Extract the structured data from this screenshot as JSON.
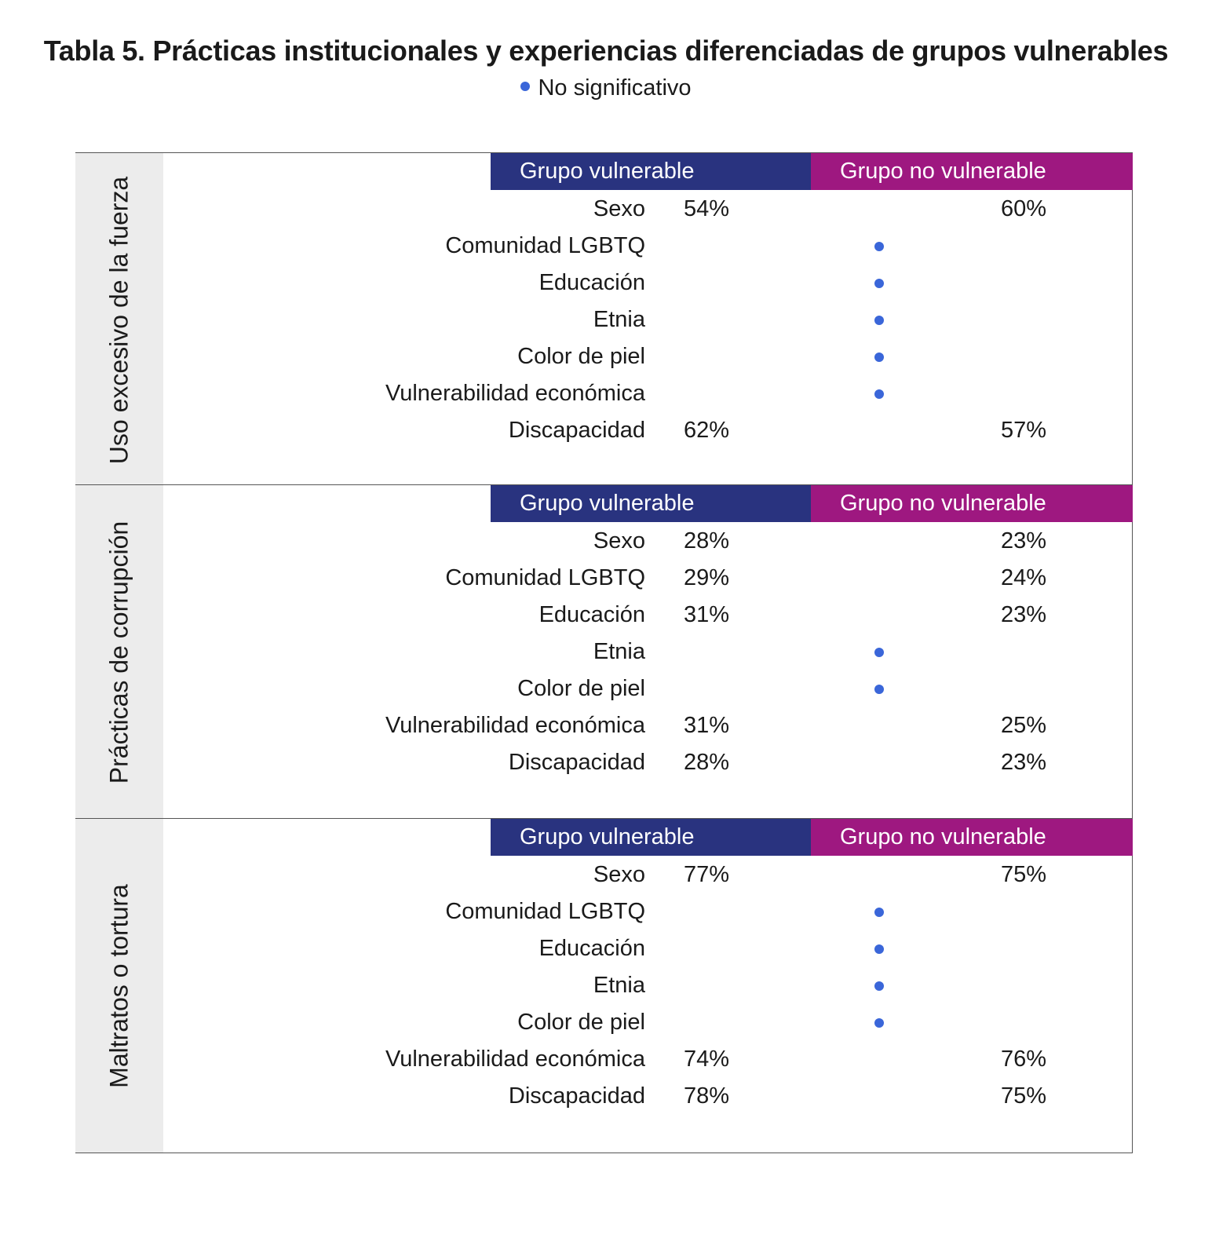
{
  "title": "Tabla 5. Prácticas institucionales y experiencias diferenciadas de grupos vulnerables",
  "legend": "No significativo",
  "colors": {
    "vulnerable": "#29337f",
    "no_vulnerable": "#9e1880",
    "dot": "#3a66d9"
  },
  "chart_data": {
    "type": "table",
    "title": "Tabla 5. Prácticas institucionales y experiencias diferenciadas de grupos vulnerables",
    "legend_marker": "No significativo",
    "columns": [
      "Grupo vulnerable",
      "Grupo no vulnerable"
    ],
    "sections": [
      {
        "name": "Uso excesivo de la fuerza",
        "rows": [
          {
            "label": "Sexo",
            "vulnerable": "54%",
            "no_vulnerable": "60%"
          },
          {
            "label": "Comunidad LGBTQ",
            "vulnerable": null,
            "no_vulnerable": null
          },
          {
            "label": "Educación",
            "vulnerable": null,
            "no_vulnerable": null
          },
          {
            "label": "Etnia",
            "vulnerable": null,
            "no_vulnerable": null
          },
          {
            "label": "Color de piel",
            "vulnerable": null,
            "no_vulnerable": null
          },
          {
            "label": "Vulnerabilidad económica",
            "vulnerable": null,
            "no_vulnerable": null
          },
          {
            "label": "Discapacidad",
            "vulnerable": "62%",
            "no_vulnerable": "57%"
          }
        ]
      },
      {
        "name": "Prácticas de corrupción",
        "rows": [
          {
            "label": "Sexo",
            "vulnerable": "28%",
            "no_vulnerable": "23%"
          },
          {
            "label": "Comunidad LGBTQ",
            "vulnerable": "29%",
            "no_vulnerable": "24%"
          },
          {
            "label": "Educación",
            "vulnerable": "31%",
            "no_vulnerable": "23%"
          },
          {
            "label": "Etnia",
            "vulnerable": null,
            "no_vulnerable": null
          },
          {
            "label": "Color de piel",
            "vulnerable": null,
            "no_vulnerable": null
          },
          {
            "label": "Vulnerabilidad económica",
            "vulnerable": "31%",
            "no_vulnerable": "25%"
          },
          {
            "label": "Discapacidad",
            "vulnerable": "28%",
            "no_vulnerable": "23%"
          }
        ]
      },
      {
        "name": "Maltratos o tortura",
        "rows": [
          {
            "label": "Sexo",
            "vulnerable": "77%",
            "no_vulnerable": "75%"
          },
          {
            "label": "Comunidad LGBTQ",
            "vulnerable": null,
            "no_vulnerable": null
          },
          {
            "label": "Educación",
            "vulnerable": null,
            "no_vulnerable": null
          },
          {
            "label": "Etnia",
            "vulnerable": null,
            "no_vulnerable": null
          },
          {
            "label": "Color de piel",
            "vulnerable": null,
            "no_vulnerable": null
          },
          {
            "label": "Vulnerabilidad económica",
            "vulnerable": "74%",
            "no_vulnerable": "76%"
          },
          {
            "label": "Discapacidad",
            "vulnerable": "78%",
            "no_vulnerable": "75%"
          }
        ]
      }
    ]
  }
}
